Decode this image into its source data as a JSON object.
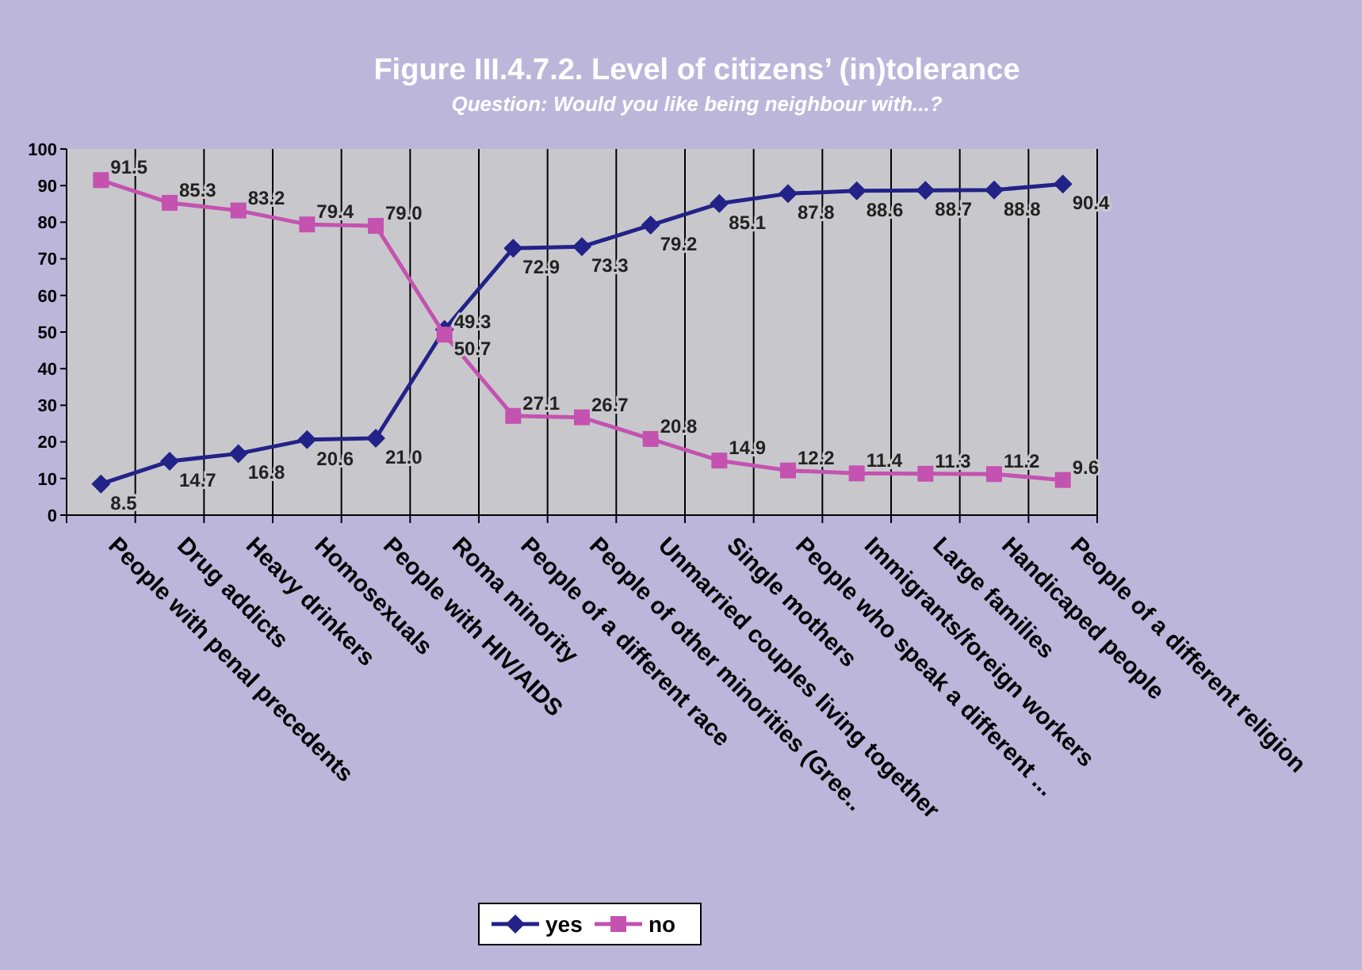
{
  "chart_data": {
    "type": "line",
    "title": "Figure III.4.7.2. Level of citizens’ (in)tolerance",
    "subtitle": "Question: Would you like being neighbour with...?",
    "categories": [
      "People with penal precedents",
      "Drug addicts",
      "Heavy drinkers",
      "Homosexuals",
      "People with HIV/AIDS",
      "Roma minority",
      "People of a different race",
      "People of other minorities (Gree..",
      "Unmarried couples living together",
      "Single mothers",
      "People who speak a different ...",
      "Immigrants/foreign workers",
      "Large families",
      "Handicaped people",
      "People of a different religion"
    ],
    "series": [
      {
        "name": "yes",
        "color": "#222288",
        "marker": "diamond",
        "values": [
          8.5,
          14.7,
          16.8,
          20.6,
          21.0,
          50.7,
          72.9,
          73.3,
          79.2,
          85.1,
          87.8,
          88.6,
          88.7,
          88.8,
          90.4
        ],
        "value_labels": [
          "8.5",
          "14.7",
          "16.8",
          "20.6",
          "21.0",
          "50.7",
          "72.9",
          "73.3",
          "79.2",
          "85.1",
          "87.8",
          "88.6",
          "88.7",
          "88.8",
          "90.4"
        ]
      },
      {
        "name": "no",
        "color": "#c452b0",
        "marker": "square",
        "values": [
          91.5,
          85.3,
          83.2,
          79.4,
          79.0,
          49.3,
          27.1,
          26.7,
          20.8,
          14.9,
          12.2,
          11.4,
          11.3,
          11.2,
          9.6
        ],
        "value_labels": [
          "91.5",
          "85.3",
          "83.2",
          "79.4",
          "79.0",
          "49.3",
          "27.1",
          "26.7",
          "20.8",
          "14.9",
          "12.2",
          "11.4",
          "11.3",
          "11.2",
          "9.6"
        ]
      }
    ],
    "ylim": [
      0,
      100
    ],
    "yticks": [
      0,
      10,
      20,
      30,
      40,
      50,
      60,
      70,
      80,
      90,
      100
    ],
    "grid": "x",
    "legend": "bottom",
    "line_style": "solid"
  }
}
